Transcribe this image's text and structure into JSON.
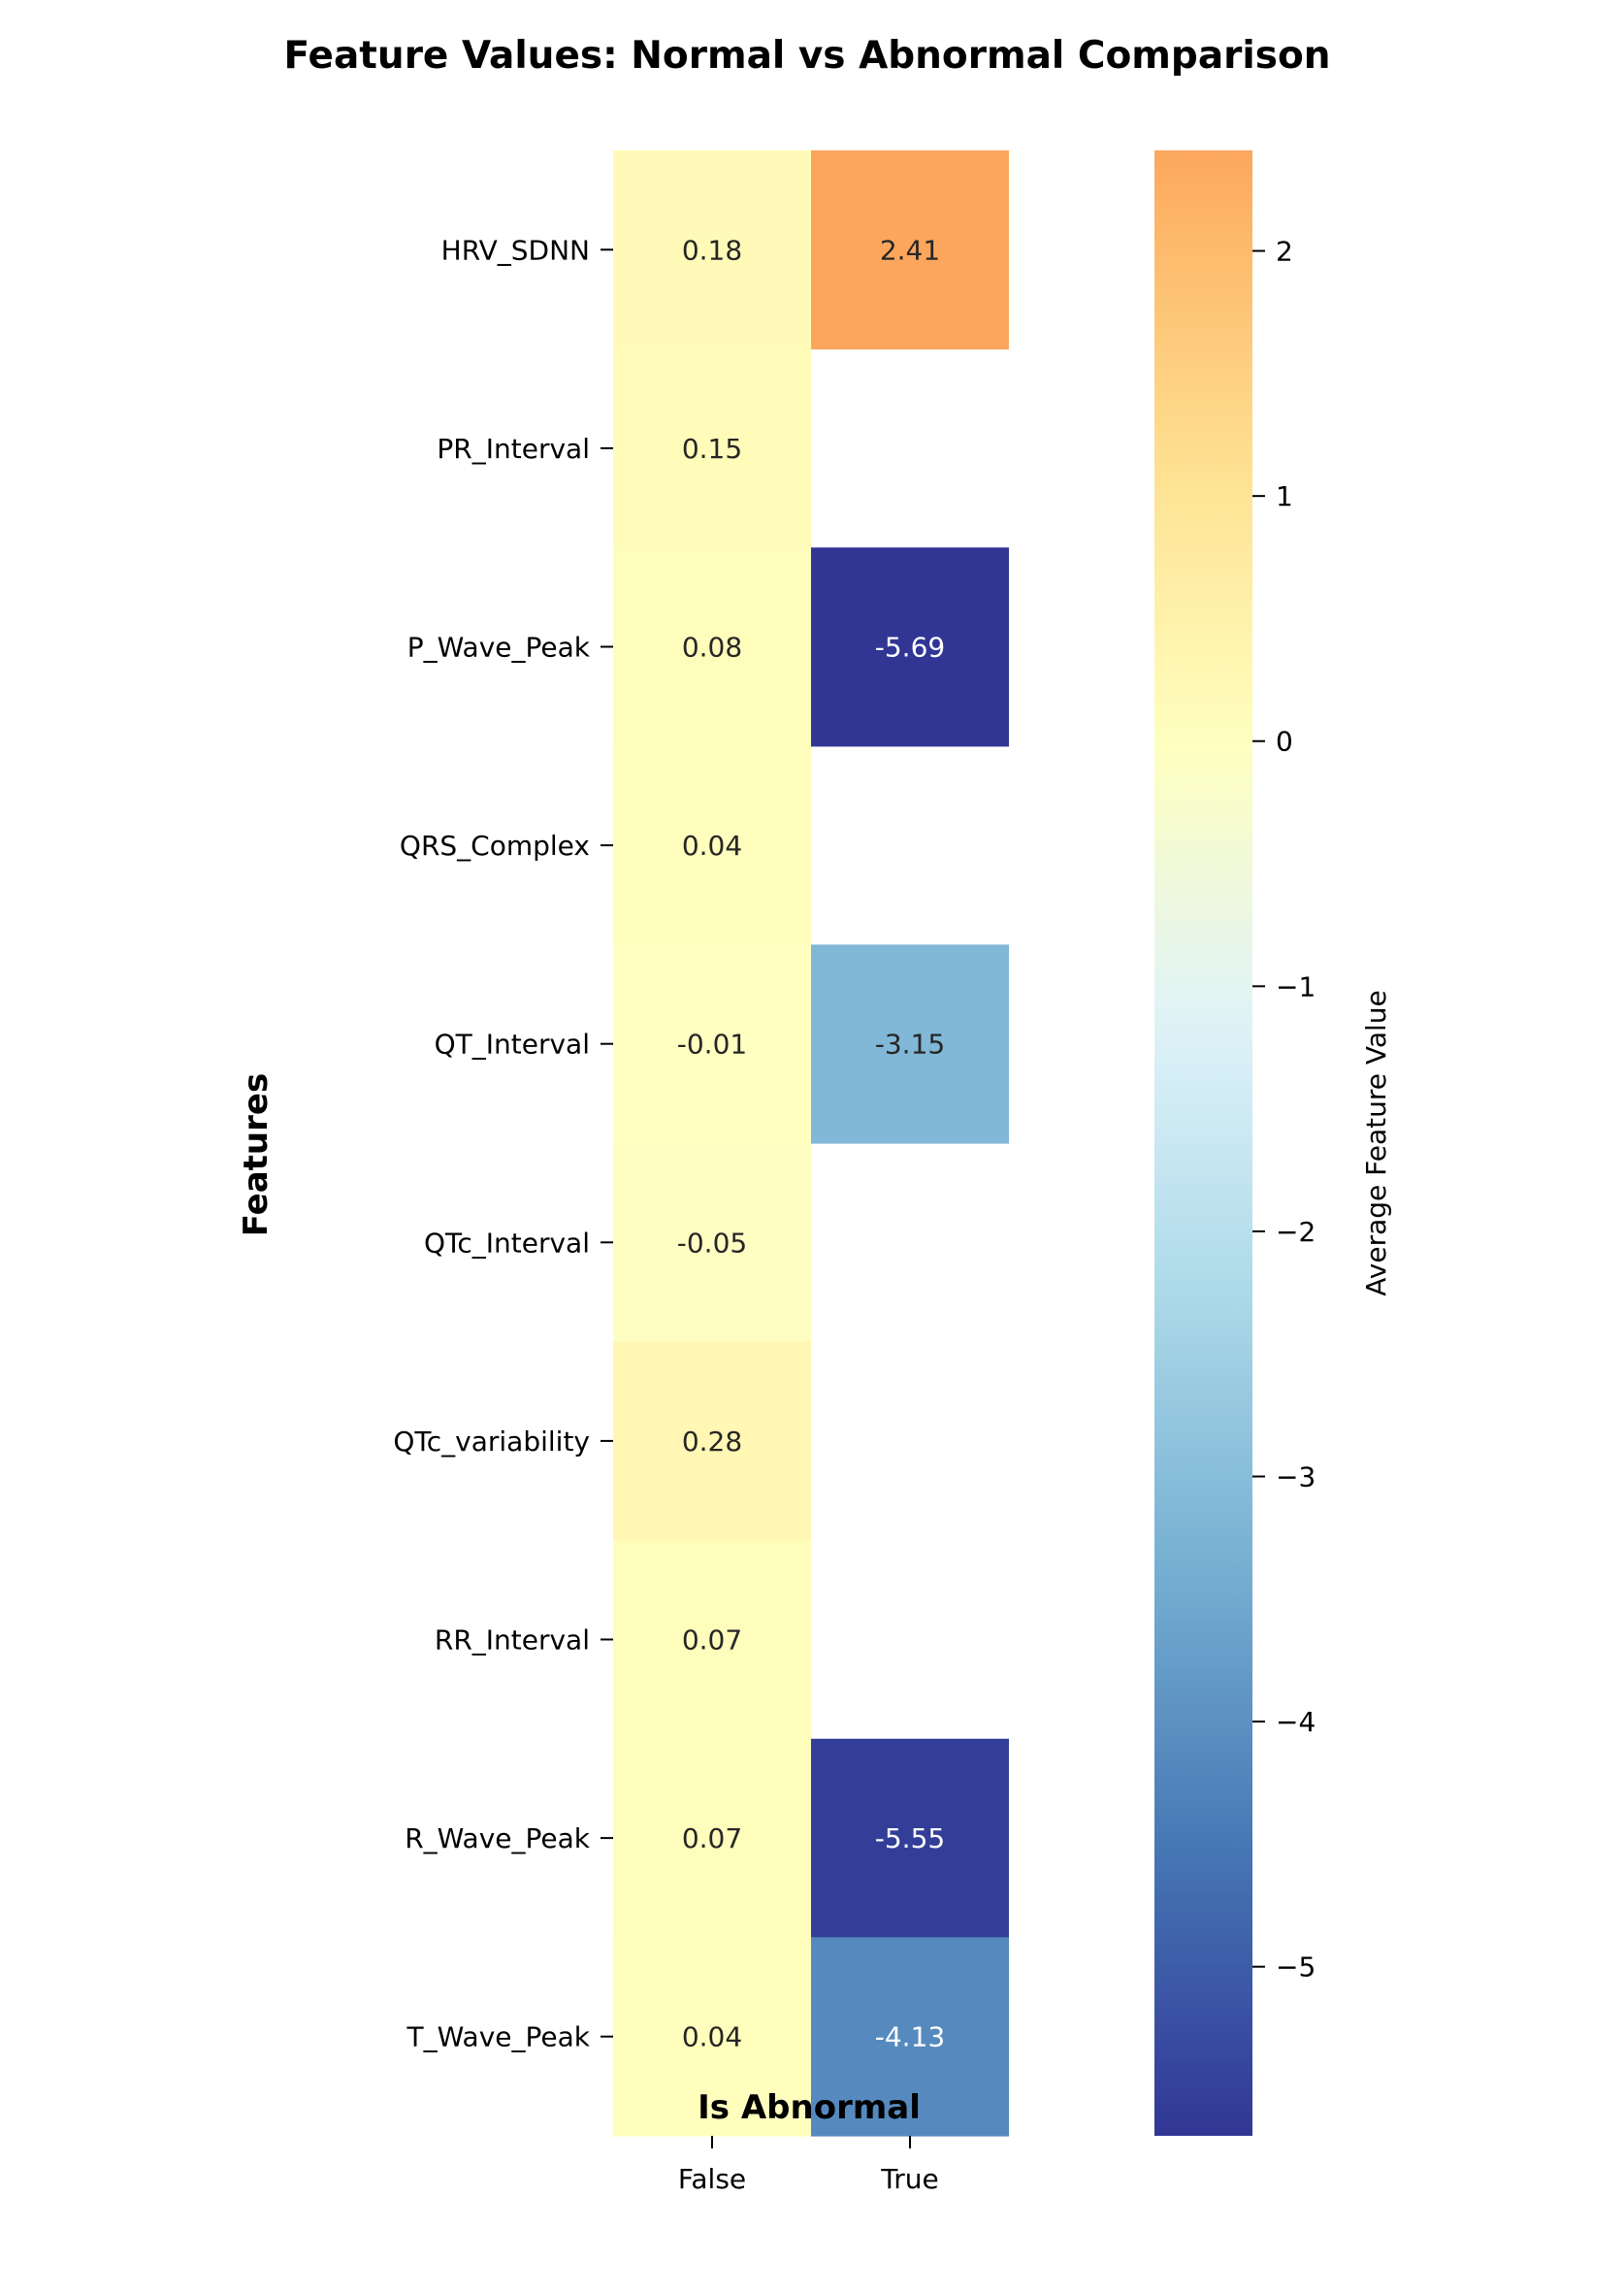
{
  "chart_data": {
    "type": "heatmap",
    "title": "Feature Values: Normal vs Abnormal Comparison",
    "xlabel": "Is Abnormal",
    "ylabel": "Features",
    "x_categories": [
      "False",
      "True"
    ],
    "y_categories": [
      "HRV_SDNN",
      "PR_Interval",
      "P_Wave_Peak",
      "QRS_Complex",
      "QT_Interval",
      "QTc_Interval",
      "QTc_variability",
      "RR_Interval",
      "R_Wave_Peak",
      "T_Wave_Peak"
    ],
    "values": [
      [
        0.18,
        2.41
      ],
      [
        0.15,
        null
      ],
      [
        0.08,
        -5.69
      ],
      [
        0.04,
        null
      ],
      [
        -0.01,
        -3.15
      ],
      [
        -0.05,
        null
      ],
      [
        0.28,
        null
      ],
      [
        0.07,
        null
      ],
      [
        0.07,
        -5.55
      ],
      [
        0.04,
        -4.13
      ]
    ],
    "colorbar": {
      "label": "Average Feature Value",
      "range": [
        -5.69,
        2.41
      ],
      "ticks": [
        2,
        1,
        0,
        -1,
        -2,
        -3,
        -4,
        -5
      ],
      "tick_labels": [
        "2",
        "1",
        "0",
        "−1",
        "−2",
        "−3",
        "−4",
        "−5"
      ],
      "colormap": "RdYlBu_r",
      "center": 0
    },
    "annotations": true,
    "grid": false
  }
}
